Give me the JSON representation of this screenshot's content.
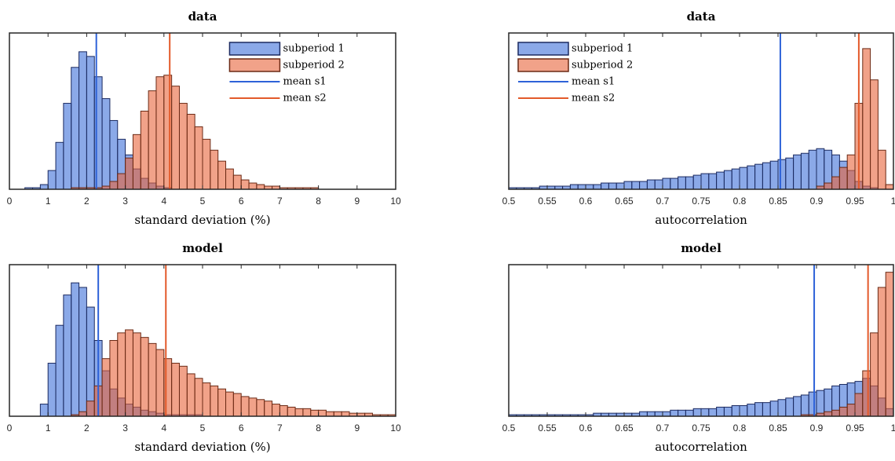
{
  "chart_data": [
    {
      "type": "histogram",
      "title": "data",
      "xlabel": "standard deviation (%)",
      "bins": [
        0,
        0.2,
        0.4,
        0.6,
        0.8,
        1,
        1.2,
        1.4,
        1.6,
        1.8,
        2,
        2.2,
        2.4,
        2.6,
        2.8,
        3,
        3.2,
        3.4,
        3.6,
        3.8,
        4,
        4.2,
        4.4,
        4.6,
        4.8,
        5,
        5.2,
        5.4,
        5.6,
        5.8,
        6,
        6.2,
        6.4,
        6.6,
        6.8,
        7,
        7.2,
        7.4,
        7.6,
        7.8,
        8,
        8.2,
        8.4,
        8.6,
        8.8,
        9,
        9.2,
        9.4,
        9.6,
        9.8,
        10
      ],
      "series": [
        {
          "name": "subperiod 1",
          "color": "#3d6fd8",
          "values": [
            0,
            0,
            1,
            1,
            3,
            12,
            30,
            55,
            78,
            88,
            85,
            72,
            58,
            44,
            32,
            22,
            13,
            7,
            4,
            2,
            1,
            0,
            0,
            0,
            0,
            0,
            0,
            0,
            0,
            0,
            0,
            0,
            0,
            0,
            0,
            0,
            0,
            0,
            0,
            0,
            0,
            0,
            0,
            0,
            0,
            0,
            0,
            0,
            0,
            0
          ]
        },
        {
          "name": "subperiod 2",
          "color": "#e8643a",
          "values": [
            0,
            0,
            0,
            0,
            0,
            0,
            0,
            0,
            1,
            1,
            1,
            1,
            2,
            5,
            10,
            20,
            35,
            50,
            63,
            72,
            73,
            66,
            55,
            48,
            40,
            32,
            25,
            18,
            13,
            9,
            6,
            4,
            3,
            2,
            2,
            1,
            1,
            1,
            1,
            1,
            0,
            0,
            0,
            0,
            0,
            0,
            0,
            0,
            0,
            0
          ]
        }
      ],
      "means": [
        {
          "name": "mean s1",
          "color": "#2e62d8",
          "value": 2.25
        },
        {
          "name": "mean s2",
          "color": "#e35a2a",
          "value": 4.15
        }
      ],
      "xlim": [
        0,
        10
      ],
      "xticks": [
        0,
        1,
        2,
        3,
        4,
        5,
        6,
        7,
        8,
        9,
        10
      ],
      "ylim": [
        0,
        100
      ],
      "legend": "northeast"
    },
    {
      "type": "histogram",
      "title": "data",
      "xlabel": "autocorrelation",
      "bins": [
        0.5,
        0.51,
        0.52,
        0.53,
        0.54,
        0.55,
        0.56,
        0.57,
        0.58,
        0.59,
        0.6,
        0.61,
        0.62,
        0.63,
        0.64,
        0.65,
        0.66,
        0.67,
        0.68,
        0.69,
        0.7,
        0.71,
        0.72,
        0.73,
        0.74,
        0.75,
        0.76,
        0.77,
        0.78,
        0.79,
        0.8,
        0.81,
        0.82,
        0.83,
        0.84,
        0.85,
        0.86,
        0.87,
        0.88,
        0.89,
        0.9,
        0.91,
        0.92,
        0.93,
        0.94,
        0.95,
        0.96,
        0.97,
        0.98,
        0.99,
        1
      ],
      "series": [
        {
          "name": "subperiod 1",
          "color": "#3d6fd8",
          "values": [
            1,
            1,
            1,
            1,
            2,
            2,
            2,
            2,
            3,
            3,
            3,
            3,
            4,
            4,
            4,
            5,
            5,
            5,
            6,
            6,
            7,
            7,
            8,
            8,
            9,
            10,
            10,
            11,
            12,
            13,
            14,
            15,
            16,
            17,
            18,
            19,
            20,
            22,
            23,
            25,
            26,
            25,
            22,
            18,
            12,
            5,
            2,
            1,
            0,
            0
          ]
        },
        {
          "name": "subperiod 2",
          "color": "#e8643a",
          "values": [
            0,
            0,
            0,
            0,
            0,
            0,
            0,
            0,
            0,
            0,
            0,
            0,
            0,
            0,
            0,
            0,
            0,
            0,
            0,
            0,
            0,
            0,
            0,
            0,
            0,
            0,
            0,
            0,
            0,
            0,
            0,
            0,
            0,
            0,
            0,
            0,
            0,
            0,
            0,
            0,
            2,
            4,
            8,
            14,
            22,
            55,
            90,
            70,
            25,
            3
          ]
        }
      ],
      "means": [
        {
          "name": "mean s1",
          "color": "#2e62d8",
          "value": 0.853
        },
        {
          "name": "mean s2",
          "color": "#e35a2a",
          "value": 0.955
        }
      ],
      "xlim": [
        0.5,
        1
      ],
      "xticks": [
        0.5,
        0.55,
        0.6,
        0.65,
        0.7,
        0.75,
        0.8,
        0.85,
        0.9,
        0.95,
        1
      ],
      "ylim": [
        0,
        100
      ],
      "legend": "northwest"
    },
    {
      "type": "histogram",
      "title": "model",
      "xlabel": "standard deviation (%)",
      "bins": [
        0,
        0.2,
        0.4,
        0.6,
        0.8,
        1,
        1.2,
        1.4,
        1.6,
        1.8,
        2,
        2.2,
        2.4,
        2.6,
        2.8,
        3,
        3.2,
        3.4,
        3.6,
        3.8,
        4,
        4.2,
        4.4,
        4.6,
        4.8,
        5,
        5.2,
        5.4,
        5.6,
        5.8,
        6,
        6.2,
        6.4,
        6.6,
        6.8,
        7,
        7.2,
        7.4,
        7.6,
        7.8,
        8,
        8.2,
        8.4,
        8.6,
        8.8,
        9,
        9.2,
        9.4,
        9.6,
        9.8,
        10
      ],
      "series": [
        {
          "color": "#3d6fd8",
          "values": [
            0,
            0,
            0,
            0,
            8,
            35,
            60,
            80,
            88,
            85,
            72,
            50,
            30,
            18,
            12,
            8,
            6,
            4,
            3,
            2,
            1,
            1,
            1,
            1,
            1,
            0,
            0,
            0,
            0,
            0,
            0,
            0,
            0,
            0,
            0,
            0,
            0,
            0,
            0,
            0,
            0,
            0,
            0,
            0,
            0,
            0,
            0,
            0,
            0,
            0
          ]
        },
        {
          "color": "#e8643a",
          "values": [
            0,
            0,
            0,
            0,
            0,
            0,
            0,
            0,
            1,
            3,
            10,
            20,
            38,
            50,
            55,
            57,
            55,
            52,
            48,
            44,
            38,
            35,
            33,
            28,
            25,
            22,
            20,
            18,
            16,
            15,
            13,
            12,
            11,
            10,
            8,
            7,
            6,
            5,
            5,
            4,
            4,
            3,
            3,
            3,
            2,
            2,
            2,
            1,
            1,
            1
          ]
        }
      ],
      "means": [
        {
          "color": "#2e62d8",
          "value": 2.3
        },
        {
          "color": "#e35a2a",
          "value": 4.05
        }
      ],
      "xlim": [
        0,
        10
      ],
      "xticks": [
        0,
        1,
        2,
        3,
        4,
        5,
        6,
        7,
        8,
        9,
        10
      ],
      "ylim": [
        0,
        100
      ]
    },
    {
      "type": "histogram",
      "title": "model",
      "xlabel": "autocorrelation",
      "bins": [
        0.5,
        0.51,
        0.52,
        0.53,
        0.54,
        0.55,
        0.56,
        0.57,
        0.58,
        0.59,
        0.6,
        0.61,
        0.62,
        0.63,
        0.64,
        0.65,
        0.66,
        0.67,
        0.68,
        0.69,
        0.7,
        0.71,
        0.72,
        0.73,
        0.74,
        0.75,
        0.76,
        0.77,
        0.78,
        0.79,
        0.8,
        0.81,
        0.82,
        0.83,
        0.84,
        0.85,
        0.86,
        0.87,
        0.88,
        0.89,
        0.9,
        0.91,
        0.92,
        0.93,
        0.94,
        0.95,
        0.96,
        0.97,
        0.98,
        0.99,
        1
      ],
      "series": [
        {
          "color": "#3d6fd8",
          "values": [
            1,
            1,
            1,
            1,
            1,
            1,
            1,
            1,
            1,
            1,
            1,
            2,
            2,
            2,
            2,
            2,
            2,
            3,
            3,
            3,
            3,
            4,
            4,
            4,
            5,
            5,
            5,
            6,
            6,
            7,
            7,
            8,
            9,
            9,
            10,
            11,
            12,
            13,
            14,
            16,
            17,
            18,
            20,
            21,
            22,
            23,
            25,
            20,
            12,
            5
          ]
        },
        {
          "color": "#e8643a",
          "values": [
            0,
            0,
            0,
            0,
            0,
            0,
            0,
            0,
            0,
            0,
            0,
            0,
            0,
            0,
            0,
            0,
            0,
            0,
            0,
            0,
            0,
            0,
            0,
            0,
            0,
            0,
            0,
            0,
            0,
            0,
            0,
            0,
            0,
            0,
            0,
            0,
            0,
            0,
            1,
            1,
            2,
            3,
            4,
            6,
            8,
            15,
            30,
            55,
            85,
            95
          ]
        }
      ],
      "means": [
        {
          "color": "#2e62d8",
          "value": 0.897
        },
        {
          "color": "#e35a2a",
          "value": 0.967
        }
      ],
      "xlim": [
        0.5,
        1
      ],
      "xticks": [
        0.5,
        0.55,
        0.6,
        0.65,
        0.7,
        0.75,
        0.8,
        0.85,
        0.9,
        0.95,
        1
      ],
      "ylim": [
        0,
        100
      ]
    }
  ]
}
